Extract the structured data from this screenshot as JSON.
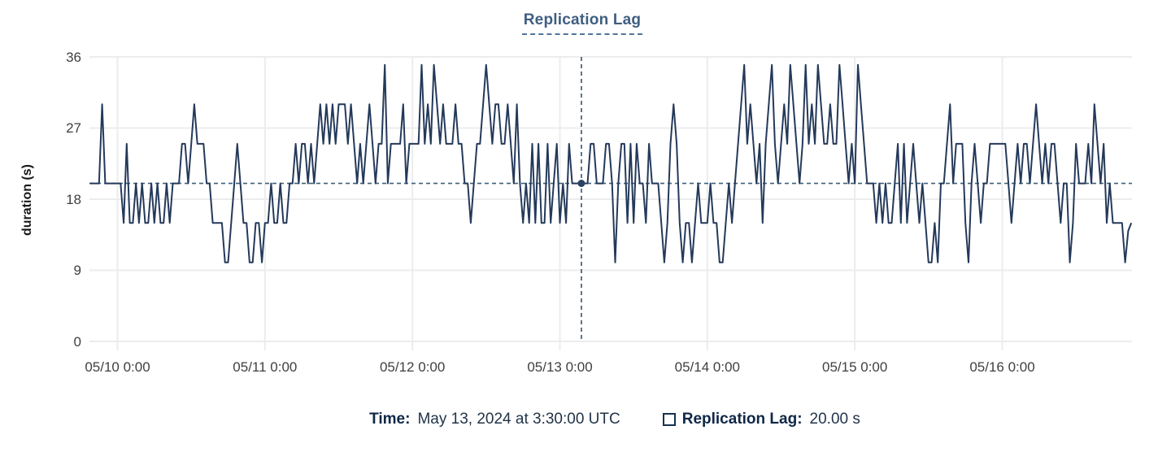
{
  "title": "Replication Lag",
  "y_axis": {
    "label": "duration (s)",
    "ticks": [
      0,
      9,
      18,
      27,
      36
    ],
    "max": 36
  },
  "x_axis": {
    "tick_labels": [
      "05/10 0:00",
      "05/11 0:00",
      "05/12 0:00",
      "05/13 0:00",
      "05/14 0:00",
      "05/15 0:00",
      "05/16 0:00"
    ]
  },
  "footer": {
    "time_label": "Time:",
    "time_value": "May 13, 2024 at 3:30:00 UTC",
    "series_label": "Replication Lag:",
    "series_value": "20.00 s"
  },
  "colors": {
    "line": "#24395a",
    "marker": "#2b4261",
    "crosshair": "#3b617c",
    "grid": "#ececec",
    "title": "#3f5e80",
    "tick_text": "#404040"
  },
  "chart_data": {
    "type": "line",
    "title": "Replication Lag",
    "ylabel": "duration (s)",
    "ylim": [
      0,
      36
    ],
    "yticks": [
      0,
      9,
      18,
      27,
      36
    ],
    "x_tick_labels": [
      "05/10 0:00",
      "05/11 0:00",
      "05/12 0:00",
      "05/13 0:00",
      "05/14 0:00",
      "05/15 0:00",
      "05/16 0:00"
    ],
    "x_step_minutes": 30,
    "x_tick_positions": [
      9,
      57,
      105,
      153,
      201,
      249,
      297
    ],
    "grid": true,
    "legend_position": "bottom",
    "selected_point": {
      "index": 160,
      "time": "May 13, 2024 at 3:30:00 UTC",
      "value": 20.0
    },
    "threshold_line": 20,
    "series": [
      {
        "name": "Replication Lag",
        "unit": "s",
        "values": [
          20,
          20,
          20,
          20,
          30,
          20,
          20,
          20,
          20,
          20,
          20,
          15,
          25,
          15,
          15,
          20,
          15,
          20,
          15,
          15,
          20,
          15,
          20,
          15,
          15,
          20,
          15,
          20,
          20,
          20,
          25,
          25,
          20,
          25,
          30,
          25,
          25,
          25,
          20,
          20,
          15,
          15,
          15,
          15,
          10,
          10,
          15,
          20,
          25,
          20,
          15,
          15,
          10,
          10,
          15,
          15,
          10,
          15,
          15,
          20,
          15,
          15,
          20,
          15,
          15,
          20,
          20,
          25,
          20,
          25,
          25,
          20,
          25,
          20,
          25,
          30,
          25,
          30,
          25,
          30,
          25,
          30,
          30,
          30,
          25,
          30,
          25,
          20,
          25,
          20,
          25,
          30,
          25,
          20,
          25,
          25,
          35,
          20,
          25,
          25,
          25,
          25,
          30,
          20,
          25,
          25,
          25,
          25,
          35,
          25,
          30,
          25,
          35,
          30,
          25,
          30,
          25,
          25,
          25,
          30,
          25,
          25,
          20,
          20,
          15,
          20,
          25,
          25,
          30,
          35,
          30,
          25,
          30,
          30,
          25,
          25,
          30,
          25,
          20,
          30,
          20,
          15,
          20,
          15,
          25,
          15,
          25,
          15,
          15,
          25,
          15,
          20,
          25,
          15,
          20,
          15,
          25,
          20,
          20,
          20,
          20,
          20,
          20,
          25,
          25,
          20,
          20,
          20,
          25,
          25,
          20,
          10,
          20,
          25,
          25,
          15,
          25,
          15,
          25,
          20,
          20,
          15,
          25,
          20,
          20,
          20,
          15,
          10,
          15,
          25,
          30,
          25,
          15,
          10,
          15,
          15,
          10,
          15,
          20,
          15,
          15,
          15,
          20,
          15,
          15,
          10,
          10,
          15,
          20,
          15,
          20,
          25,
          30,
          35,
          25,
          30,
          25,
          20,
          25,
          15,
          25,
          30,
          35,
          25,
          20,
          25,
          30,
          25,
          35,
          30,
          25,
          20,
          25,
          35,
          25,
          30,
          25,
          35,
          30,
          25,
          25,
          30,
          25,
          25,
          35,
          30,
          25,
          20,
          25,
          20,
          35,
          30,
          25,
          20,
          20,
          20,
          15,
          20,
          15,
          20,
          15,
          15,
          20,
          25,
          15,
          25,
          15,
          20,
          25,
          20,
          15,
          20,
          15,
          10,
          10,
          15,
          10,
          20,
          20,
          25,
          30,
          20,
          25,
          25,
          25,
          15,
          10,
          20,
          25,
          20,
          15,
          20,
          20,
          25,
          25,
          25,
          25,
          25,
          25,
          20,
          15,
          20,
          25,
          20,
          25,
          25,
          20,
          25,
          30,
          25,
          20,
          25,
          20,
          25,
          25,
          20,
          15,
          20,
          20,
          10,
          15,
          25,
          20,
          20,
          20,
          25,
          20,
          30,
          25,
          20,
          25,
          15,
          20,
          15,
          15,
          15,
          15,
          10,
          14,
          15
        ]
      }
    ]
  }
}
